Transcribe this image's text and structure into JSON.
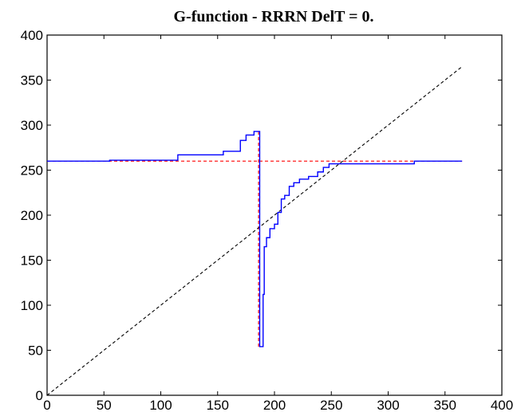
{
  "chart_data": {
    "type": "line",
    "title": "G-function - RRRN DelT = 0.",
    "xlabel": "",
    "ylabel": "",
    "xlim": [
      0,
      400
    ],
    "ylim": [
      0,
      400
    ],
    "xticks": [
      0,
      50,
      100,
      150,
      200,
      250,
      300,
      350,
      400
    ],
    "yticks": [
      0,
      50,
      100,
      150,
      200,
      250,
      300,
      350,
      400
    ],
    "grid": false,
    "series": [
      {
        "color": "#0000ff",
        "style": "solid",
        "x": [
          0,
          55,
          55,
          115,
          115,
          155,
          155,
          170,
          170,
          175,
          175,
          182,
          182,
          187,
          187,
          190,
          190,
          191,
          191,
          193,
          193,
          196,
          196,
          200,
          200,
          203,
          203,
          206,
          206,
          209,
          209,
          213,
          213,
          217,
          217,
          222,
          222,
          230,
          230,
          238,
          238,
          243,
          243,
          248,
          248,
          255,
          255,
          323,
          323,
          365
        ],
        "y": [
          260,
          260,
          261,
          261,
          267,
          267,
          271,
          271,
          283,
          283,
          289,
          289,
          293,
          293,
          54,
          54,
          112,
          112,
          165,
          165,
          175,
          175,
          185,
          185,
          190,
          190,
          203,
          203,
          218,
          218,
          222,
          222,
          232,
          232,
          236,
          236,
          240,
          240,
          243,
          243,
          248,
          248,
          253,
          253,
          257,
          257,
          257,
          257,
          260,
          260
        ]
      },
      {
        "color": "#ff0000",
        "style": "dashed",
        "x": [
          0,
          365
        ],
        "y": [
          260,
          260
        ]
      },
      {
        "color": "#ff0000",
        "style": "dashed",
        "x": [
          186,
          186
        ],
        "y": [
          54,
          293
        ]
      },
      {
        "color": "#000000",
        "style": "dashed",
        "x": [
          0,
          365
        ],
        "y": [
          0,
          365
        ]
      }
    ]
  }
}
